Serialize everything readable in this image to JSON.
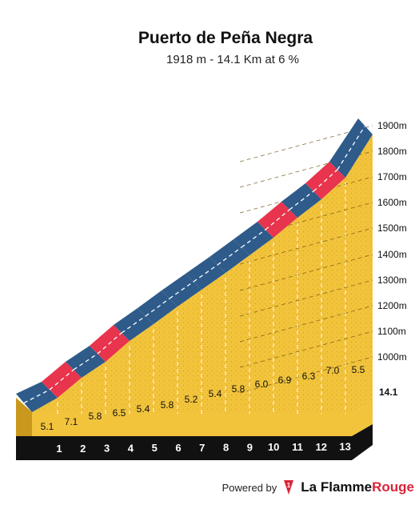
{
  "chart_data": {
    "type": "area",
    "title": "Puerto de Peña Negra",
    "subtitle": "1918 m - 14.1 Km at 6 %",
    "y_ticks": [
      "1000m",
      "1100m",
      "1200m",
      "1300m",
      "1400m",
      "1500m",
      "1600m",
      "1700m",
      "1800m",
      "1900m"
    ],
    "x_labels": [
      "1",
      "2",
      "3",
      "4",
      "5",
      "6",
      "7",
      "8",
      "9",
      "10",
      "11",
      "12",
      "13"
    ],
    "end_label": "14.1",
    "segments": [
      {
        "km": "0-1",
        "gradient": "5.1",
        "color": "#2e5b8a"
      },
      {
        "km": "1-2",
        "gradient": "7.1",
        "color": "#e8344c"
      },
      {
        "km": "2-3",
        "gradient": "5.8",
        "color": "#2e5b8a"
      },
      {
        "km": "3-4",
        "gradient": "6.5",
        "color": "#e8344c"
      },
      {
        "km": "4-5",
        "gradient": "5.4",
        "color": "#2e5b8a"
      },
      {
        "km": "5-6",
        "gradient": "5.8",
        "color": "#2e5b8a"
      },
      {
        "km": "6-7",
        "gradient": "5.2",
        "color": "#2e5b8a"
      },
      {
        "km": "7-8",
        "gradient": "5.4",
        "color": "#2e5b8a"
      },
      {
        "km": "8-9",
        "gradient": "5.8",
        "color": "#2e5b8a"
      },
      {
        "km": "9-10",
        "gradient": "6.0",
        "color": "#2e5b8a"
      },
      {
        "km": "10-11",
        "gradient": "6.9",
        "color": "#e8344c"
      },
      {
        "km": "11-12",
        "gradient": "6.3",
        "color": "#2e5b8a"
      },
      {
        "km": "12-13",
        "gradient": "7.0",
        "color": "#e8344c"
      },
      {
        "km": "13-14.1",
        "gradient": "5.5",
        "color": "#2e5b8a"
      }
    ]
  },
  "footer": {
    "powered_by": "Powered by",
    "brand_prefix": "La Flamme",
    "brand_suffix": "Rouge"
  }
}
